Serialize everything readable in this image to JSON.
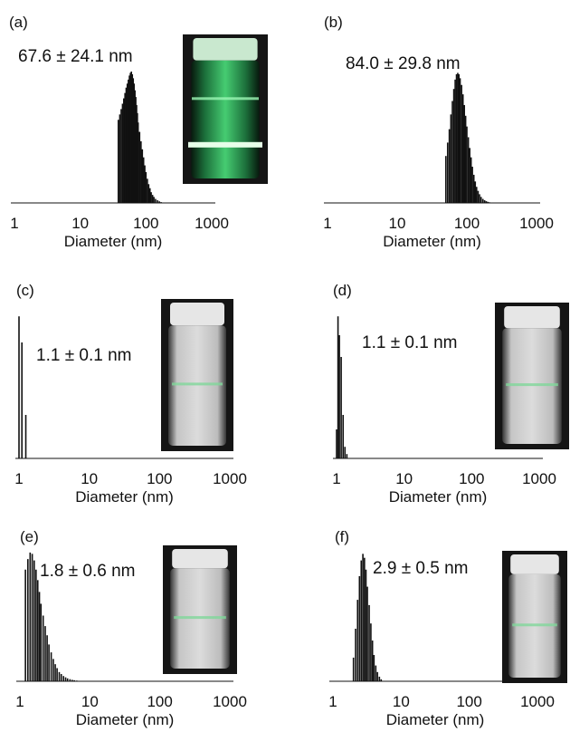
{
  "chart_data": [
    {
      "type": "bar",
      "panel_label": "(a)",
      "size_label": "67.6 ± 24.1 nm",
      "xlabel": "Diameter (nm)",
      "x_scale": "log",
      "xlim": [
        1,
        1000
      ],
      "x_ticks": [
        "1",
        "10",
        "100",
        "1000"
      ],
      "y_axis_shown": false,
      "ylim": [
        0,
        1
      ],
      "inset_photo": "vial with green laser beam (Tyndall scattering)",
      "x": [
        38,
        40,
        42,
        44,
        46,
        48,
        50,
        52,
        54,
        56,
        58,
        60,
        62,
        64,
        66,
        68,
        70,
        72,
        74,
        76,
        80,
        84,
        88,
        92,
        96,
        100,
        105,
        110,
        115,
        120,
        126,
        132,
        140,
        150,
        160,
        170
      ],
      "values": [
        0.62,
        0.66,
        0.7,
        0.74,
        0.78,
        0.82,
        0.86,
        0.89,
        0.92,
        0.95,
        0.97,
        0.98,
        0.96,
        0.93,
        0.89,
        0.84,
        0.79,
        0.73,
        0.67,
        0.6,
        0.53,
        0.46,
        0.4,
        0.34,
        0.28,
        0.23,
        0.18,
        0.14,
        0.11,
        0.08,
        0.06,
        0.045,
        0.03,
        0.02,
        0.012,
        0.006
      ]
    },
    {
      "type": "bar",
      "panel_label": "(b)",
      "size_label": "84.0 ± 29.8 nm",
      "xlabel": "Diameter (nm)",
      "x_scale": "log",
      "xlim": [
        1,
        1000
      ],
      "x_ticks": [
        "1",
        "10",
        "100",
        "1000"
      ],
      "y_axis_shown": false,
      "ylim": [
        0,
        1
      ],
      "x": [
        50,
        53,
        56,
        59,
        62,
        65,
        68,
        71,
        74,
        77,
        80,
        84,
        88,
        92,
        96,
        100,
        105,
        110,
        115,
        120,
        126,
        132,
        138,
        145,
        152,
        160,
        170,
        180,
        190,
        200,
        210,
        220
      ],
      "values": [
        0.35,
        0.45,
        0.55,
        0.66,
        0.76,
        0.85,
        0.92,
        0.96,
        0.97,
        0.96,
        0.93,
        0.88,
        0.81,
        0.73,
        0.65,
        0.57,
        0.49,
        0.41,
        0.34,
        0.27,
        0.21,
        0.16,
        0.12,
        0.09,
        0.065,
        0.045,
        0.03,
        0.02,
        0.013,
        0.008,
        0.005,
        0.003
      ]
    },
    {
      "type": "bar",
      "panel_label": "(c)",
      "size_label": "1.1 ± 0.1 nm",
      "xlabel": "Diameter (nm)",
      "x_scale": "log",
      "xlim": [
        1,
        1000
      ],
      "x_ticks": [
        "1",
        "10",
        "100",
        "1000"
      ],
      "y_axis_shown": false,
      "ylim": [
        0,
        1
      ],
      "inset_photo": "clear vial on Kagoshima University background",
      "x": [
        1.0,
        1.1,
        1.25
      ],
      "values": [
        0.98,
        0.8,
        0.3
      ]
    },
    {
      "type": "bar",
      "panel_label": "(d)",
      "size_label": "1.1 ± 0.1 nm",
      "xlabel": "Diameter (nm)",
      "x_scale": "log",
      "xlim": [
        1,
        1000
      ],
      "x_ticks": [
        "1",
        "10",
        "100",
        "1000"
      ],
      "y_axis_shown": false,
      "ylim": [
        0,
        1
      ],
      "inset_photo": "clear vial on Kagoshima University background",
      "x": [
        1.0,
        1.05,
        1.1,
        1.17,
        1.25,
        1.33,
        1.42
      ],
      "values": [
        0.2,
        0.98,
        0.85,
        0.7,
        0.3,
        0.08,
        0.03
      ]
    },
    {
      "type": "bar",
      "panel_label": "(e)",
      "size_label": "1.8 ± 0.6 nm",
      "xlabel": "Diameter (nm)",
      "x_scale": "log",
      "xlim": [
        1,
        1000
      ],
      "x_ticks": [
        "1",
        "10",
        "100",
        "1000"
      ],
      "y_axis_shown": false,
      "ylim": [
        0,
        1
      ],
      "inset_photo": "clear vial on Kagoshima University background",
      "x": [
        1.2,
        1.3,
        1.4,
        1.5,
        1.6,
        1.7,
        1.8,
        1.9,
        2.0,
        2.15,
        2.3,
        2.45,
        2.6,
        2.8,
        3.0,
        3.2,
        3.4,
        3.65,
        3.9,
        4.2,
        4.5,
        4.8,
        5.2,
        5.6,
        6.0,
        6.5,
        7.0
      ],
      "values": [
        0.85,
        0.93,
        0.98,
        0.97,
        0.92,
        0.85,
        0.77,
        0.68,
        0.59,
        0.5,
        0.42,
        0.35,
        0.28,
        0.22,
        0.17,
        0.13,
        0.1,
        0.07,
        0.055,
        0.04,
        0.03,
        0.022,
        0.016,
        0.011,
        0.008,
        0.005,
        0.003
      ]
    },
    {
      "type": "bar",
      "panel_label": "(f)",
      "size_label": "2.9 ± 0.5 nm",
      "xlabel": "Diameter (nm)",
      "x_scale": "log",
      "xlim": [
        1,
        1000
      ],
      "x_ticks": [
        "1",
        "10",
        "100",
        "1000"
      ],
      "y_axis_shown": false,
      "ylim": [
        0,
        1
      ],
      "inset_photo": "clear vial on Kagoshima University background",
      "x": [
        2.0,
        2.15,
        2.3,
        2.45,
        2.6,
        2.75,
        2.9,
        3.05,
        3.2,
        3.4,
        3.6,
        3.8,
        4.0,
        4.25,
        4.5,
        4.8,
        5.1
      ],
      "values": [
        0.18,
        0.4,
        0.62,
        0.8,
        0.92,
        0.97,
        0.94,
        0.85,
        0.72,
        0.58,
        0.44,
        0.31,
        0.2,
        0.12,
        0.07,
        0.035,
        0.015
      ]
    }
  ]
}
